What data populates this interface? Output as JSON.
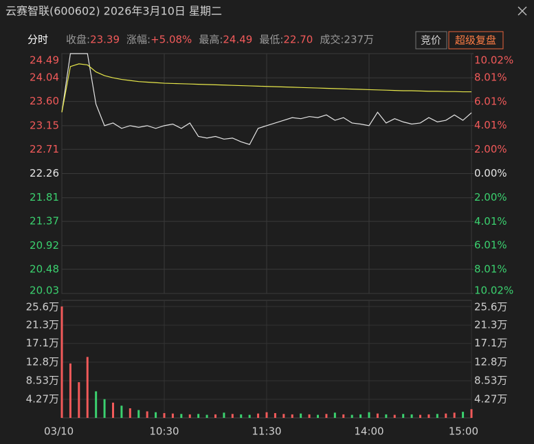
{
  "header": {
    "title": "云赛智联(600602) 2026年3月10日 星期二"
  },
  "info": {
    "mode": "分时",
    "items": [
      {
        "label": "收盘:",
        "value": "23.39"
      },
      {
        "label": "涨幅:",
        "value": "+5.08%"
      },
      {
        "label": "最高:",
        "value": "24.49"
      },
      {
        "label": "最低:",
        "value": "22.70"
      },
      {
        "label": "成交:",
        "value": "237万"
      }
    ],
    "buttons": [
      "竞价",
      "超级复盘"
    ]
  },
  "chart_data": [
    {
      "type": "line",
      "x": [
        0,
        5,
        10,
        15,
        20,
        25,
        30,
        35,
        40,
        45,
        50,
        55,
        60,
        65,
        70,
        75,
        80,
        85,
        90,
        95,
        100,
        105,
        110,
        115,
        120,
        125,
        130,
        135,
        140,
        145,
        150,
        155,
        160,
        165,
        170,
        175,
        180,
        185,
        190,
        195,
        200,
        205,
        210,
        215,
        220,
        225,
        230,
        235,
        240
      ],
      "xlim": [
        0,
        240
      ],
      "series": [
        {
          "color": "#e6e6e6",
          "values": [
            23.4,
            24.49,
            24.49,
            24.49,
            23.55,
            23.15,
            23.2,
            23.1,
            23.15,
            23.12,
            23.15,
            23.1,
            23.15,
            23.18,
            23.1,
            23.2,
            22.95,
            22.92,
            22.95,
            22.9,
            22.92,
            22.85,
            22.8,
            23.1,
            23.15,
            23.2,
            23.25,
            23.3,
            23.28,
            23.32,
            23.3,
            23.35,
            23.25,
            23.3,
            23.2,
            23.18,
            23.15,
            23.4,
            23.2,
            23.28,
            23.22,
            23.18,
            23.2,
            23.3,
            23.22,
            23.25,
            23.35,
            23.25,
            23.39
          ]
        },
        {
          "color": "#e8e84a",
          "values": [
            23.4,
            24.25,
            24.3,
            24.28,
            24.15,
            24.08,
            24.04,
            24.01,
            23.99,
            23.97,
            23.96,
            23.95,
            23.94,
            23.935,
            23.93,
            23.925,
            23.92,
            23.915,
            23.91,
            23.905,
            23.9,
            23.895,
            23.89,
            23.885,
            23.88,
            23.875,
            23.87,
            23.865,
            23.86,
            23.855,
            23.85,
            23.845,
            23.84,
            23.835,
            23.83,
            23.825,
            23.82,
            23.815,
            23.81,
            23.805,
            23.8,
            23.8,
            23.795,
            23.79,
            23.79,
            23.785,
            23.785,
            23.78,
            23.78
          ]
        }
      ],
      "ylim": [
        20.03,
        24.49
      ],
      "yticks": [
        24.49,
        24.04,
        {
          "value": 23.6,
          "label": "23.60"
        },
        23.15,
        22.71,
        22.26,
        21.81,
        21.37,
        20.92,
        20.48,
        20.03
      ],
      "y2lim": [
        -10.02,
        10.02
      ],
      "y2ticks": [
        {
          "value": 10.02,
          "label": "10.02%"
        },
        {
          "value": 8.01,
          "label": "8.01%"
        },
        {
          "value": 6.01,
          "label": "6.01%"
        },
        {
          "value": 4.01,
          "label": "4.01%"
        },
        {
          "value": 2,
          "label": "2.00%"
        },
        {
          "value": 0,
          "label": "0.00%"
        },
        {
          "value": -2,
          "label": "2.00%"
        },
        {
          "value": -4.01,
          "label": "4.01%"
        },
        {
          "value": -6.01,
          "label": "6.01%"
        },
        {
          "value": -8.01,
          "label": "8.01%"
        },
        {
          "value": -10.02,
          "label": "10.02%"
        }
      ],
      "up_color": "#f25a5a",
      "down_color": "#3bd16f",
      "flat_color": "#e6e6e6",
      "grid": true
    },
    {
      "type": "bar",
      "x": [
        0,
        5,
        10,
        15,
        20,
        25,
        30,
        35,
        40,
        45,
        50,
        55,
        60,
        65,
        70,
        75,
        80,
        85,
        90,
        95,
        100,
        105,
        110,
        115,
        120,
        125,
        130,
        135,
        140,
        145,
        150,
        155,
        160,
        165,
        170,
        175,
        180,
        185,
        190,
        195,
        200,
        205,
        210,
        215,
        220,
        225,
        230,
        235,
        240
      ],
      "xlim": [
        0,
        240
      ],
      "values": [
        25.6,
        12.5,
        8.2,
        14.0,
        6.1,
        4.3,
        3.5,
        2.8,
        2.2,
        1.8,
        1.5,
        1.3,
        1.1,
        1.0,
        0.9,
        0.8,
        0.9,
        0.7,
        0.8,
        1.2,
        0.9,
        0.8,
        0.7,
        1.0,
        1.3,
        1.1,
        0.9,
        0.8,
        1.0,
        0.8,
        0.7,
        0.9,
        1.2,
        0.8,
        0.7,
        0.8,
        1.3,
        1.0,
        0.8,
        0.7,
        0.9,
        0.8,
        0.7,
        0.8,
        0.9,
        1.0,
        1.2,
        1.4,
        2.0
      ],
      "ylim": [
        0,
        27
      ],
      "yticks": [
        {
          "value": 25.6,
          "label": "25.6万"
        },
        {
          "value": 21.3,
          "label": "21.3万"
        },
        {
          "value": 17.1,
          "label": "17.1万"
        },
        {
          "value": 12.8,
          "label": "12.8万"
        },
        {
          "value": 8.53,
          "label": "8.53万"
        },
        {
          "value": 4.27,
          "label": "4.27万"
        }
      ],
      "xticks": [
        {
          "value": 0,
          "label": "03/10"
        },
        {
          "value": 60,
          "label": "10:30"
        },
        {
          "value": 120,
          "label": "11:30"
        },
        {
          "value": 180,
          "label": "14:00"
        },
        {
          "value": 240,
          "label": "15:00"
        }
      ],
      "up_color": "#f25a5a",
      "down_color": "#3bd16f",
      "grid": true
    }
  ]
}
